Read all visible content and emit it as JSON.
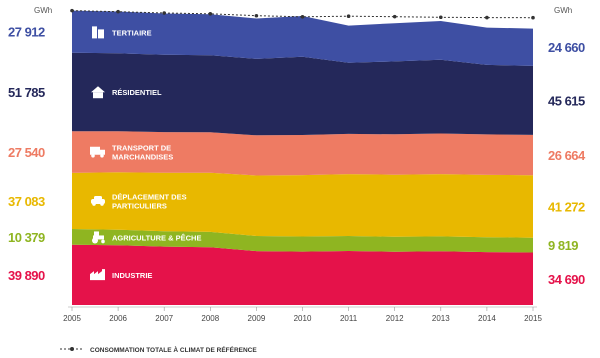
{
  "chart_data": {
    "type": "area",
    "stacked": true,
    "unit": "GWh",
    "x": [
      2005,
      2006,
      2007,
      2008,
      2009,
      2010,
      2011,
      2012,
      2013,
      2014,
      2015
    ],
    "series": [
      {
        "name": "INDUSTRIE",
        "color": "#e5124a",
        "values": [
          39890,
          39500,
          38600,
          38200,
          35600,
          35300,
          35700,
          35200,
          35500,
          35000,
          34690
        ],
        "start_label": "39 890",
        "end_label": "34 690",
        "icon": "factory-icon"
      },
      {
        "name": "AGRICULTURE & PÊCHE",
        "color": "#8fb521",
        "values": [
          10379,
          10300,
          10200,
          10150,
          10000,
          9950,
          9900,
          9850,
          9850,
          9830,
          9819
        ],
        "start_label": "10 379",
        "end_label": "9 819",
        "icon": "tractor-icon"
      },
      {
        "name": "DÉPLACEMENT DES PARTICULIERS",
        "color": "#e8b800",
        "values": [
          37083,
          37900,
          38600,
          39100,
          40000,
          40600,
          40900,
          41100,
          41200,
          41200,
          41272
        ],
        "start_label": "37 083",
        "end_label": "41 272",
        "icon": "car-icon"
      },
      {
        "name": "TRANSPORT DE MARCHANDISES",
        "color": "#ee7b63",
        "values": [
          27540,
          27200,
          26900,
          26700,
          26600,
          26500,
          26600,
          26700,
          26800,
          26750,
          26664
        ],
        "start_label": "27 540",
        "end_label": "26 664",
        "icon": "truck-icon"
      },
      {
        "name": "RÉSIDENTIEL",
        "color": "#24285a",
        "values": [
          51785,
          51500,
          51100,
          50900,
          50500,
          51800,
          47000,
          48200,
          48800,
          45900,
          45615
        ],
        "start_label": "51 785",
        "end_label": "45 615",
        "icon": "house-icon"
      },
      {
        "name": "TERTIAIRE",
        "color": "#3e4fa3",
        "values": [
          27912,
          27600,
          27300,
          27200,
          26700,
          26900,
          24600,
          25200,
          25600,
          24700,
          24660
        ],
        "start_label": "27 912",
        "end_label": "24 660",
        "icon": "office-icon"
      }
    ],
    "reference_line": {
      "name": "CONSOMMATION TOTALE À CLIMAT DE RÉFÉRENCE",
      "values": [
        194589,
        193900,
        193000,
        192500,
        191200,
        190500,
        190900,
        190600,
        190200,
        190000,
        189900
      ]
    },
    "ylim": [
      0,
      195000
    ],
    "xlabel": "",
    "ylabel": "",
    "grid": false,
    "legend": "bottom-left"
  }
}
